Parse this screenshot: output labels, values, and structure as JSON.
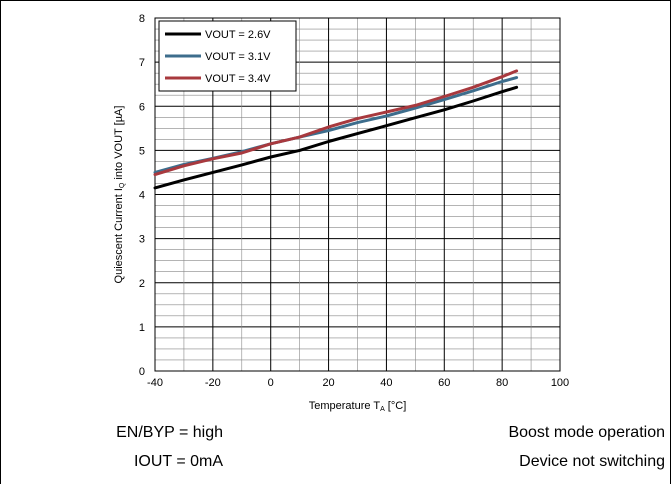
{
  "chart_data": {
    "type": "line",
    "title": "",
    "xlabel": "Temperature T",
    "xlabel_sub": "A",
    "xlabel_unit": " [°C]",
    "ylabel": "Quiescent Current I",
    "ylabel_sub": "Q",
    "ylabel_rest": " into VOUT  [µA]",
    "xlim": [
      -40,
      100
    ],
    "ylim": [
      0,
      8
    ],
    "xticks": [
      -40,
      -20,
      0,
      20,
      40,
      60,
      80,
      100
    ],
    "yticks": [
      0,
      1,
      2,
      3,
      4,
      5,
      6,
      7,
      8
    ],
    "x_minor_step": 10,
    "y_minor_step": 0.25,
    "grid": true,
    "legend_position": "top-left",
    "series": [
      {
        "name": "VOUT = 2.6V",
        "color": "#000000",
        "x": [
          -40,
          -30,
          -20,
          -10,
          0,
          10,
          20,
          30,
          40,
          50,
          60,
          70,
          80,
          85
        ],
        "y": [
          4.15,
          4.33,
          4.5,
          4.67,
          4.85,
          5.0,
          5.2,
          5.38,
          5.56,
          5.74,
          5.92,
          6.12,
          6.33,
          6.43
        ]
      },
      {
        "name": "VOUT = 3.1V",
        "color": "#3d6d8c",
        "x": [
          -40,
          -30,
          -20,
          -10,
          0,
          10,
          20,
          30,
          40,
          50,
          60,
          70,
          80,
          85
        ],
        "y": [
          4.5,
          4.68,
          4.82,
          4.97,
          5.15,
          5.3,
          5.45,
          5.63,
          5.78,
          5.96,
          6.15,
          6.35,
          6.56,
          6.65
        ]
      },
      {
        "name": "VOUT = 3.4V",
        "color": "#a8393e",
        "x": [
          -40,
          -30,
          -20,
          -10,
          0,
          10,
          20,
          30,
          40,
          50,
          60,
          70,
          80,
          85
        ],
        "y": [
          4.45,
          4.65,
          4.81,
          4.94,
          5.15,
          5.3,
          5.53,
          5.72,
          5.87,
          6.02,
          6.22,
          6.43,
          6.67,
          6.8
        ]
      }
    ]
  },
  "conditions": {
    "left": [
      "EN/BYP = high",
      "IOUT = 0mA"
    ],
    "right": [
      "Boost mode operation",
      "Device not switching"
    ]
  }
}
